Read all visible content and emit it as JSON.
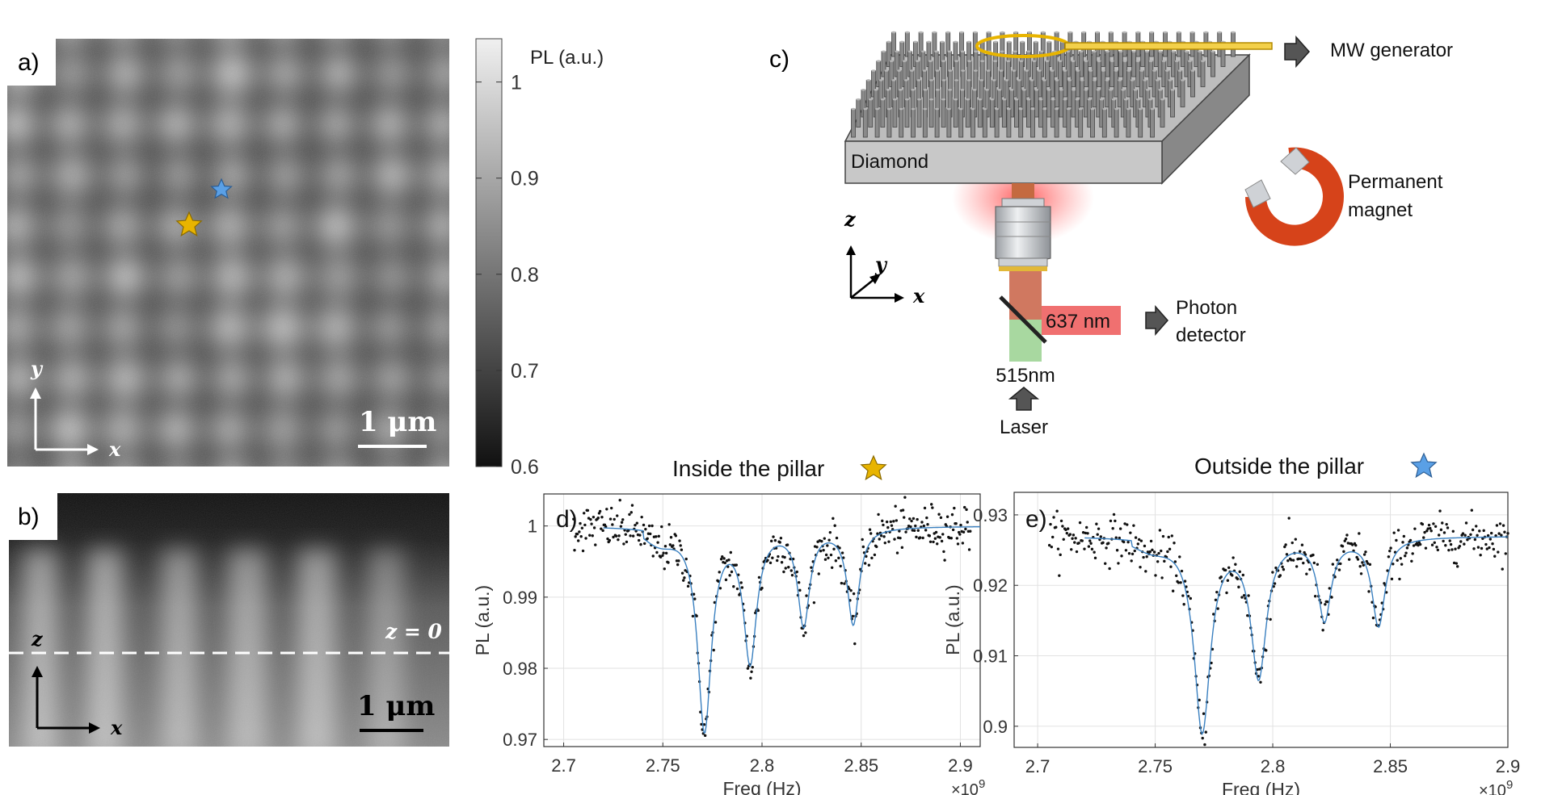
{
  "panels": {
    "a": {
      "letter": "a)",
      "scalebar": "1 μm",
      "axis_x": "x",
      "axis_y": "y"
    },
    "b": {
      "letter": "b)",
      "scalebar": "1 μm",
      "axis_x": "x",
      "axis_z": "z",
      "zline": "z = 0"
    },
    "c": {
      "letter": "c)",
      "diamond": "Diamond",
      "mw": "MW generator",
      "magnet_line1": "Permanent",
      "magnet_line2": "magnet",
      "photon_line1": "Photon",
      "photon_line2": "detector",
      "red_wl": "637 nm",
      "green_wl": "515nm",
      "laser": "Laser",
      "axis_x": "x",
      "axis_y": "y",
      "axis_z": "z"
    },
    "d": {
      "letter": "d)",
      "title": "Inside the pillar"
    },
    "e": {
      "letter": "e)",
      "title": "Outside the pillar"
    }
  },
  "colorbar": {
    "title": "PL (a.u.)",
    "ticks": [
      "1",
      "0.9",
      "0.8",
      "0.7",
      "0.6"
    ]
  },
  "colors": {
    "gold_star": "#e8b400",
    "blue_star": "#5aa0e6",
    "fit_line": "#3a80c0",
    "red_beam": "#f07070",
    "green_beam": "#a8d8a0"
  },
  "chart_data": [
    {
      "type": "scatter",
      "title": "Inside the pillar",
      "xlabel": "Freq (Hz)",
      "ylabel": "PL (a.u.)",
      "x_multiplier": "×10^9",
      "x_ticks": [
        "2.7",
        "2.75",
        "2.8",
        "2.85",
        "2.9"
      ],
      "y_ticks": [
        "1",
        "0.99",
        "0.98",
        "0.97"
      ],
      "xlim": [
        2.69,
        2.91
      ],
      "ylim": [
        0.969,
        1.0045
      ],
      "baseline": 1.0,
      "dips": [
        {
          "center": 2.771,
          "depth": 0.0285,
          "width": 0.0042
        },
        {
          "center": 2.794,
          "depth": 0.0185,
          "width": 0.004
        },
        {
          "center": 2.821,
          "depth": 0.0135,
          "width": 0.0036
        },
        {
          "center": 2.846,
          "depth": 0.0135,
          "width": 0.0036
        }
      ],
      "slope": {
        "start": 2.74,
        "amount": 0.002
      },
      "x_range": [
        2.705,
        2.905
      ],
      "fit_range": [
        2.72,
        2.91
      ],
      "noise": 0.0016
    },
    {
      "type": "scatter",
      "title": "Outside the pillar",
      "xlabel": "Freq (Hz)",
      "ylabel": "PL (a.u.)",
      "x_multiplier": "×10^9",
      "x_ticks": [
        "2.7",
        "2.75",
        "2.8",
        "2.85",
        "2.9"
      ],
      "y_ticks": [
        "0.93",
        "0.92",
        "0.91",
        "0.9"
      ],
      "xlim": [
        2.69,
        2.9
      ],
      "ylim": [
        0.897,
        0.9332
      ],
      "baseline": 0.927,
      "dips": [
        {
          "center": 2.77,
          "depth": 0.0275,
          "width": 0.0042
        },
        {
          "center": 2.794,
          "depth": 0.0195,
          "width": 0.004
        },
        {
          "center": 2.822,
          "depth": 0.0115,
          "width": 0.0034
        },
        {
          "center": 2.845,
          "depth": 0.0125,
          "width": 0.0034
        }
      ],
      "slope": {
        "start": 2.74,
        "amount": 0.0015
      },
      "x_range": [
        2.705,
        2.9
      ],
      "fit_range": [
        2.72,
        2.9
      ],
      "noise": 0.0016
    }
  ]
}
